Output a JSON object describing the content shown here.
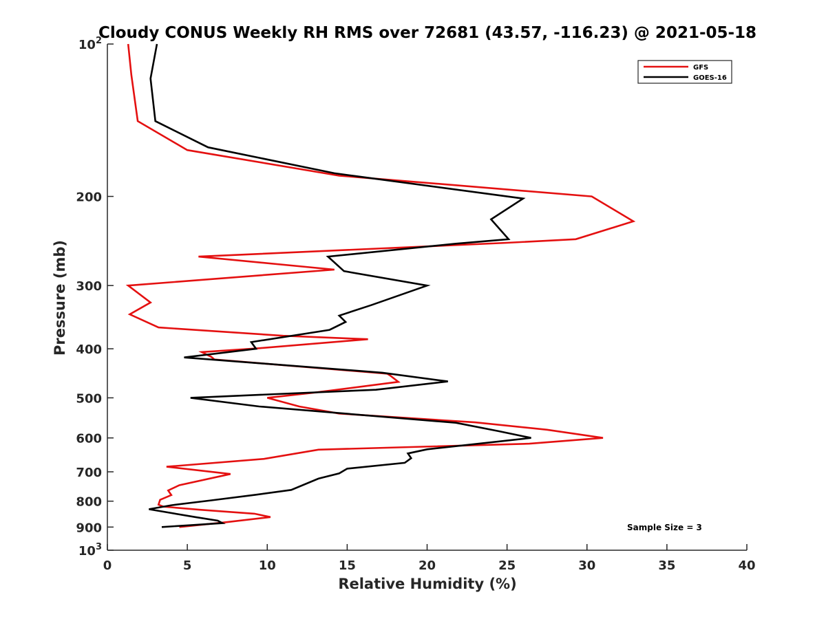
{
  "chart_data": {
    "type": "line",
    "title": "Cloudy CONUS Weekly RH RMS over 72681 (43.57, -116.23) @ 2021-05-18",
    "xlabel": "Relative Humidity (%)",
    "ylabel": "Pressure (mb)",
    "xlim": [
      0,
      40
    ],
    "ylim": [
      100,
      1000
    ],
    "y_scale": "log",
    "y_reversed": true,
    "x_ticks": [
      0,
      5,
      10,
      15,
      20,
      25,
      30,
      35,
      40
    ],
    "x_tick_labels": [
      "0",
      "5",
      "10",
      "15",
      "20",
      "25",
      "30",
      "35",
      "40"
    ],
    "y_ticks": [
      100,
      200,
      300,
      400,
      500,
      600,
      700,
      800,
      900,
      1000
    ],
    "y_tick_labels": [
      {
        "base": "10",
        "exp": "2"
      },
      {
        "base": "200",
        "exp": ""
      },
      {
        "base": "300",
        "exp": ""
      },
      {
        "base": "400",
        "exp": ""
      },
      {
        "base": "500",
        "exp": ""
      },
      {
        "base": "600",
        "exp": ""
      },
      {
        "base": "700",
        "exp": ""
      },
      {
        "base": "800",
        "exp": ""
      },
      {
        "base": "900",
        "exp": ""
      },
      {
        "base": "10",
        "exp": "3"
      }
    ],
    "grid": false,
    "legend_position": "top-right",
    "annotation": "Sample Size = 3",
    "series": [
      {
        "name": "GFS",
        "color": "#e41010",
        "points": [
          [
            4.5,
            900
          ],
          [
            7.5,
            880
          ],
          [
            10.2,
            860
          ],
          [
            9.2,
            847
          ],
          [
            5.8,
            832
          ],
          [
            3.5,
            820
          ],
          [
            3.2,
            813
          ],
          [
            3.3,
            795
          ],
          [
            4.0,
            778
          ],
          [
            3.8,
            762
          ],
          [
            4.5,
            744
          ],
          [
            7.7,
            707
          ],
          [
            3.7,
            684
          ],
          [
            9.8,
            660
          ],
          [
            13.2,
            633
          ],
          [
            26.4,
            616
          ],
          [
            31.0,
            600
          ],
          [
            27.5,
            578
          ],
          [
            23.0,
            559
          ],
          [
            14.5,
            537
          ],
          [
            12.0,
            520
          ],
          [
            10.0,
            500
          ],
          [
            13.0,
            488
          ],
          [
            18.2,
            465
          ],
          [
            17.7,
            452
          ],
          [
            17.5,
            448
          ],
          [
            6.7,
            420
          ],
          [
            6.5,
            415
          ],
          [
            5.9,
            406
          ],
          [
            9.5,
            399
          ],
          [
            16.3,
            383
          ],
          [
            11.0,
            377
          ],
          [
            3.2,
            363
          ],
          [
            1.4,
            342
          ],
          [
            2.7,
            324
          ],
          [
            1.3,
            300
          ],
          [
            14.2,
            279
          ],
          [
            5.7,
            263
          ],
          [
            25.0,
            247
          ],
          [
            29.3,
            243
          ],
          [
            32.9,
            224
          ],
          [
            30.3,
            200
          ],
          [
            14.5,
            182
          ],
          [
            5.0,
            162
          ],
          [
            1.9,
            142
          ],
          [
            1.5,
            115
          ],
          [
            1.3,
            100
          ]
        ]
      },
      {
        "name": "GOES-16",
        "color": "#000000",
        "points": [
          [
            3.4,
            900
          ],
          [
            7.2,
            884
          ],
          [
            6.9,
            874
          ],
          [
            5.5,
            860
          ],
          [
            2.6,
            830
          ],
          [
            4.0,
            815
          ],
          [
            6.5,
            797
          ],
          [
            9.3,
            777
          ],
          [
            11.5,
            760
          ],
          [
            13.2,
            722
          ],
          [
            14.5,
            705
          ],
          [
            15.0,
            690
          ],
          [
            18.6,
            672
          ],
          [
            19.0,
            658
          ],
          [
            18.8,
            644
          ],
          [
            20.0,
            632
          ],
          [
            26.5,
            600
          ],
          [
            24.5,
            582
          ],
          [
            21.8,
            560
          ],
          [
            9.5,
            520
          ],
          [
            5.2,
            500
          ],
          [
            16.8,
            482
          ],
          [
            21.3,
            464
          ],
          [
            17.2,
            446
          ],
          [
            4.8,
            416
          ],
          [
            9.3,
            400
          ],
          [
            9.0,
            388
          ],
          [
            13.9,
            367
          ],
          [
            14.9,
            354
          ],
          [
            14.5,
            344
          ],
          [
            16.5,
            328
          ],
          [
            20.0,
            300
          ],
          [
            14.8,
            281
          ],
          [
            13.8,
            263
          ],
          [
            21.8,
            248
          ],
          [
            25.1,
            243
          ],
          [
            24.0,
            222
          ],
          [
            26.0,
            202
          ],
          [
            14.2,
            180
          ],
          [
            6.3,
            160
          ],
          [
            3.0,
            142
          ],
          [
            2.7,
            117
          ],
          [
            3.1,
            100
          ]
        ]
      }
    ]
  }
}
